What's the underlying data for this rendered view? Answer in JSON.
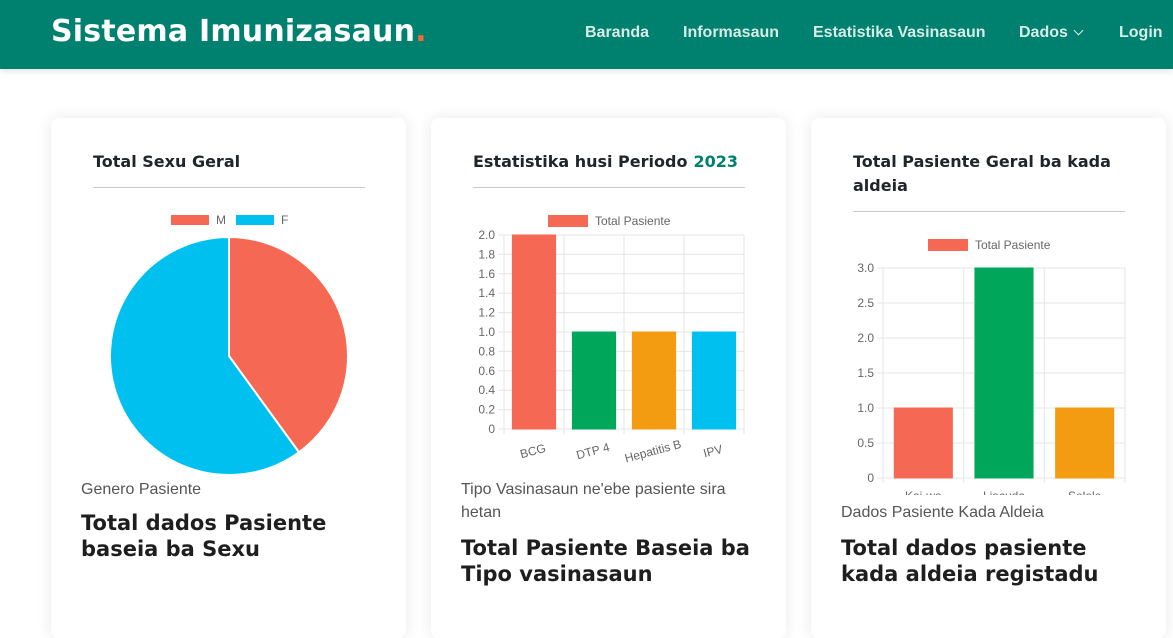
{
  "app": {
    "brand": "Sistema Imunizasaun",
    "brand_dot": ".",
    "brand_dot_color": "#f26b3a",
    "nav_color": "#00806e"
  },
  "nav": [
    {
      "label": "Baranda"
    },
    {
      "label": "Informasaun"
    },
    {
      "label": "Estatistika Vasinasaun"
    },
    {
      "label": "Dados",
      "icon": "chevron-down-icon"
    },
    {
      "label": "Login"
    }
  ],
  "cards": [
    {
      "title": "Total Sexu Geral",
      "subtitle": "Genero Pasiente",
      "heading": "Total dados Pasiente baseia ba Sexu"
    },
    {
      "title": "Estatistika husi Periodo",
      "year": "2023",
      "subtitle": "Tipo Vasinasaun ne'ebe pasiente sira hetan",
      "heading": "Total Pasiente Baseia ba Tipo vasinasaun"
    },
    {
      "title": "Total Pasiente Geral ba kada aldeia",
      "subtitle": "Dados Pasiente Kada Aldeia",
      "heading": "Total dados pasiente kada aldeia registadu"
    }
  ],
  "chart_data": [
    {
      "type": "pie",
      "categories": [
        "M",
        "F"
      ],
      "values": [
        40,
        60
      ],
      "colors": [
        "#f56954",
        "#00c0ef"
      ],
      "legend": "top"
    },
    {
      "type": "bar",
      "categories": [
        "BCG",
        "DTP 4",
        "Hepatitis B",
        "IPV"
      ],
      "series": [
        {
          "name": "Total Pasiente",
          "values": [
            2,
            1,
            1,
            1
          ]
        }
      ],
      "colors": [
        "#f56954",
        "#00a65a",
        "#f39c12",
        "#00c0ef"
      ],
      "legend_color": "#f56954",
      "ylim": [
        0,
        2
      ],
      "yticks": [
        "2.0",
        "1.8",
        "1.6",
        "1.4",
        "1.2",
        "1.0",
        "0.8",
        "0.6",
        "0.4",
        "0.2",
        "0"
      ],
      "grid": true,
      "legend": "top"
    },
    {
      "type": "bar",
      "categories": [
        "Kai-wa",
        "Liacuda",
        "Selele"
      ],
      "series": [
        {
          "name": "Total Pasiente",
          "values": [
            1,
            3,
            1
          ]
        }
      ],
      "colors": [
        "#f56954",
        "#00a65a",
        "#f39c12"
      ],
      "legend_color": "#f56954",
      "ylim": [
        0,
        3
      ],
      "yticks": [
        "3.0",
        "2.5",
        "2.0",
        "1.5",
        "1.0",
        "0.5",
        "0"
      ],
      "grid": true,
      "legend": "top"
    }
  ]
}
